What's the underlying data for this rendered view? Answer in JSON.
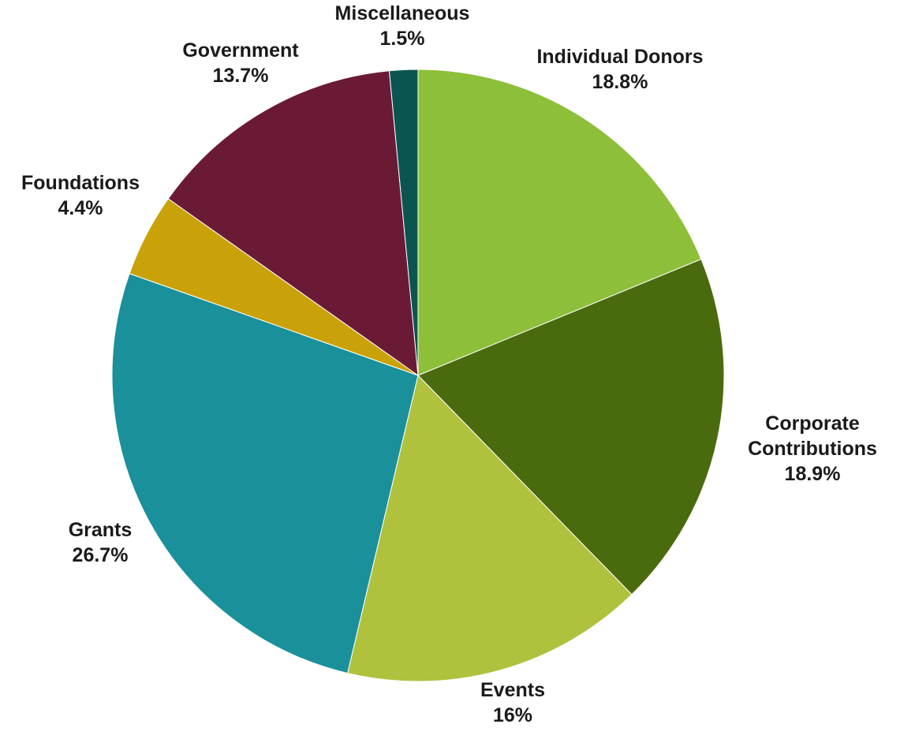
{
  "chart_data": {
    "type": "pie",
    "start_angle_deg": 0,
    "direction": "clockwise",
    "slices": [
      {
        "label": [
          "Individual Donors"
        ],
        "value_label": "18.8%",
        "value": 18.8,
        "color": "#8dbf3a"
      },
      {
        "label": [
          "Corporate",
          "Contributions"
        ],
        "value_label": "18.9%",
        "value": 18.9,
        "color": "#4a6b0d"
      },
      {
        "label": [
          "Events"
        ],
        "value_label": "16%",
        "value": 16.0,
        "color": "#b0c13d"
      },
      {
        "label": [
          "Grants"
        ],
        "value_label": "26.7%",
        "value": 26.7,
        "color": "#1a909b"
      },
      {
        "label": [
          "Foundations"
        ],
        "value_label": "4.4%",
        "value": 4.4,
        "color": "#c9a20a"
      },
      {
        "label": [
          "Government"
        ],
        "value_label": "13.7%",
        "value": 13.7,
        "color": "#6b1a35"
      },
      {
        "label": [
          "Miscellaneous"
        ],
        "value_label": "1.5%",
        "value": 1.5,
        "color": "#0b5550"
      }
    ]
  }
}
